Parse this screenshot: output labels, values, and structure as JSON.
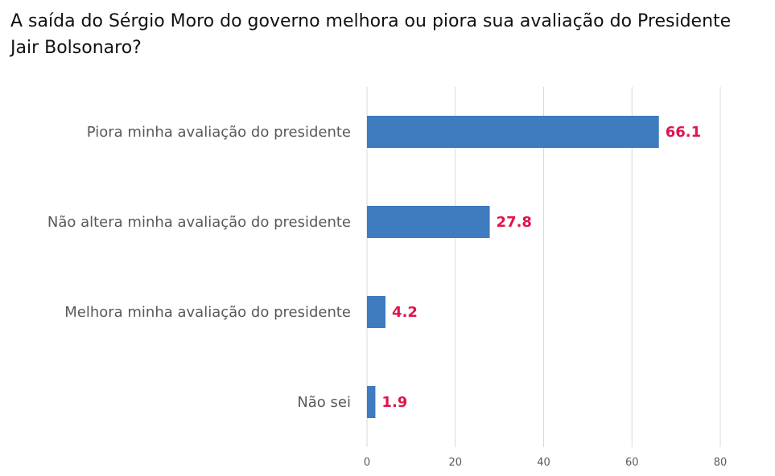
{
  "chart_data": {
    "type": "bar",
    "orientation": "horizontal",
    "title": "A saída do Sérgio Moro do governo melhora ou piora sua avaliação do Presidente Jair Bolsonaro?",
    "categories": [
      "Piora minha avaliação do presidente",
      "Não altera minha avaliação do presidente",
      "Melhora minha avaliação do presidente",
      "Não sei"
    ],
    "values": [
      66.1,
      27.8,
      4.2,
      1.9
    ],
    "data_labels": [
      "66.1",
      "27.8",
      "4.2",
      "1.9"
    ],
    "xlim": [
      0,
      80
    ],
    "xticks": [
      0,
      20,
      40,
      60,
      80
    ],
    "xtick_labels": [
      "0",
      "20",
      "40",
      "60",
      "80"
    ],
    "xlabel": "",
    "ylabel": "",
    "grid": true,
    "legend": "none",
    "colors": {
      "bar": "#3f7bbf",
      "data_label": "#e0144c",
      "grid": "#d9d9d9",
      "text": "#595959"
    }
  }
}
